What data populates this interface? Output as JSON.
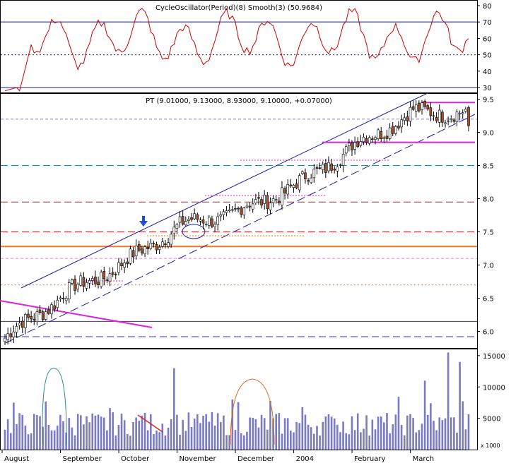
{
  "indicator_panel": {
    "title": "CycleOscillator(Period)(8) Smooth(3) (50.9684)",
    "y_ticks": [
      30,
      40,
      50,
      60,
      70,
      80
    ],
    "ylim": [
      27,
      83
    ],
    "ref_lines": [
      {
        "value": 70,
        "style": "solid",
        "color": "#1a1aa8"
      },
      {
        "value": 50,
        "style": "dotted",
        "color": "#1a1aa8"
      },
      {
        "value": 30,
        "style": "solid",
        "color": "#1a1aa8"
      }
    ],
    "line_color": "#cc0000"
  },
  "price_panel": {
    "title": "PT (9.01000, 9.13000, 8.93000, 9.10000, +0.07000)",
    "y_ticks": [
      6.0,
      6.5,
      7.0,
      7.5,
      8.0,
      8.5,
      9.0,
      9.5
    ],
    "ylim": [
      5.75,
      9.58
    ],
    "up_color": "#ffffff",
    "down_color": "#a0522d",
    "horizontal_lines": [
      {
        "value": 9.2,
        "style": "dashed-fine",
        "color": "#7a7ac8"
      },
      {
        "value": 8.5,
        "style": "dashed",
        "color": "#2e8b8b"
      },
      {
        "value": 7.95,
        "style": "dashed",
        "color": "#8a3b3b"
      },
      {
        "value": 7.5,
        "style": "dashed",
        "color": "#cc2222"
      },
      {
        "value": 7.28,
        "style": "solid",
        "color": "#ee7722"
      },
      {
        "value": 7.1,
        "style": "dashed-fine",
        "color": "#dd88dd"
      },
      {
        "value": 6.7,
        "style": "dotted",
        "color": "#ee7722"
      },
      {
        "value": 6.15,
        "style": "solid",
        "color": "#3333bb"
      },
      {
        "value": 5.92,
        "style": "dashed",
        "color": "#3333bb"
      }
    ],
    "magenta_levels": [
      9.45,
      8.85
    ]
  },
  "volume_panel": {
    "y_ticks": [
      5000,
      10000,
      15000
    ],
    "ylim": [
      0,
      16000
    ],
    "unit_label": "x 1000",
    "bar_color": "#7b7bc0"
  },
  "x_axis": {
    "labels": [
      "August",
      "September",
      "October",
      "November",
      "December",
      "2004",
      "February",
      "March"
    ]
  },
  "chart_data": {
    "type": "candlestick",
    "title": "PT (9.01000, 9.13000, 8.93000, 9.10000, +0.07000)",
    "sessions": 160,
    "monthly_close_checkpoints": [
      {
        "x": "August",
        "y": 5.9
      },
      {
        "x": "September",
        "y": 6.55
      },
      {
        "x": "October",
        "y": 7.0
      },
      {
        "x": "November",
        "y": 7.6
      },
      {
        "x": "December",
        "y": 7.8
      },
      {
        "x": "2004",
        "y": 8.2
      },
      {
        "x": "February",
        "y": 8.8
      },
      {
        "x": "March",
        "y": 9.3
      }
    ],
    "last_bar": {
      "open": 9.01,
      "high": 9.13,
      "low": 8.93,
      "close": 9.1,
      "change": 0.07
    },
    "volume_peaks": [
      {
        "x": "September",
        "y": 13000
      },
      {
        "x": "December",
        "y": 12000
      },
      {
        "x": "March",
        "y": 15500
      }
    ],
    "oscillator_range": [
      28,
      80
    ]
  }
}
